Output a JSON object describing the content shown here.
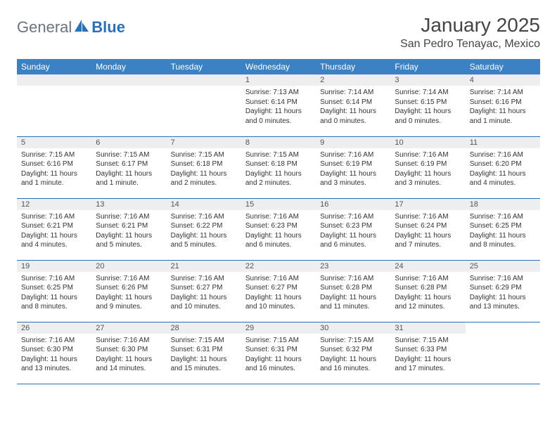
{
  "logo": {
    "text1": "General",
    "text2": "Blue"
  },
  "title": "January 2025",
  "location": "San Pedro Tenayac, Mexico",
  "colors": {
    "header_bg": "#3b82c4",
    "header_text": "#ffffff",
    "row_divider": "#2a71b8",
    "daynum_bg": "#eceef0",
    "logo_gray": "#6b7280",
    "logo_blue": "#2a71b8"
  },
  "weekdays": [
    "Sunday",
    "Monday",
    "Tuesday",
    "Wednesday",
    "Thursday",
    "Friday",
    "Saturday"
  ],
  "weeks": [
    [
      null,
      null,
      null,
      {
        "n": "1",
        "sr": "7:13 AM",
        "ss": "6:14 PM",
        "dl": "11 hours and 0 minutes."
      },
      {
        "n": "2",
        "sr": "7:14 AM",
        "ss": "6:14 PM",
        "dl": "11 hours and 0 minutes."
      },
      {
        "n": "3",
        "sr": "7:14 AM",
        "ss": "6:15 PM",
        "dl": "11 hours and 0 minutes."
      },
      {
        "n": "4",
        "sr": "7:14 AM",
        "ss": "6:16 PM",
        "dl": "11 hours and 1 minute."
      }
    ],
    [
      {
        "n": "5",
        "sr": "7:15 AM",
        "ss": "6:16 PM",
        "dl": "11 hours and 1 minute."
      },
      {
        "n": "6",
        "sr": "7:15 AM",
        "ss": "6:17 PM",
        "dl": "11 hours and 1 minute."
      },
      {
        "n": "7",
        "sr": "7:15 AM",
        "ss": "6:18 PM",
        "dl": "11 hours and 2 minutes."
      },
      {
        "n": "8",
        "sr": "7:15 AM",
        "ss": "6:18 PM",
        "dl": "11 hours and 2 minutes."
      },
      {
        "n": "9",
        "sr": "7:16 AM",
        "ss": "6:19 PM",
        "dl": "11 hours and 3 minutes."
      },
      {
        "n": "10",
        "sr": "7:16 AM",
        "ss": "6:19 PM",
        "dl": "11 hours and 3 minutes."
      },
      {
        "n": "11",
        "sr": "7:16 AM",
        "ss": "6:20 PM",
        "dl": "11 hours and 4 minutes."
      }
    ],
    [
      {
        "n": "12",
        "sr": "7:16 AM",
        "ss": "6:21 PM",
        "dl": "11 hours and 4 minutes."
      },
      {
        "n": "13",
        "sr": "7:16 AM",
        "ss": "6:21 PM",
        "dl": "11 hours and 5 minutes."
      },
      {
        "n": "14",
        "sr": "7:16 AM",
        "ss": "6:22 PM",
        "dl": "11 hours and 5 minutes."
      },
      {
        "n": "15",
        "sr": "7:16 AM",
        "ss": "6:23 PM",
        "dl": "11 hours and 6 minutes."
      },
      {
        "n": "16",
        "sr": "7:16 AM",
        "ss": "6:23 PM",
        "dl": "11 hours and 6 minutes."
      },
      {
        "n": "17",
        "sr": "7:16 AM",
        "ss": "6:24 PM",
        "dl": "11 hours and 7 minutes."
      },
      {
        "n": "18",
        "sr": "7:16 AM",
        "ss": "6:25 PM",
        "dl": "11 hours and 8 minutes."
      }
    ],
    [
      {
        "n": "19",
        "sr": "7:16 AM",
        "ss": "6:25 PM",
        "dl": "11 hours and 8 minutes."
      },
      {
        "n": "20",
        "sr": "7:16 AM",
        "ss": "6:26 PM",
        "dl": "11 hours and 9 minutes."
      },
      {
        "n": "21",
        "sr": "7:16 AM",
        "ss": "6:27 PM",
        "dl": "11 hours and 10 minutes."
      },
      {
        "n": "22",
        "sr": "7:16 AM",
        "ss": "6:27 PM",
        "dl": "11 hours and 10 minutes."
      },
      {
        "n": "23",
        "sr": "7:16 AM",
        "ss": "6:28 PM",
        "dl": "11 hours and 11 minutes."
      },
      {
        "n": "24",
        "sr": "7:16 AM",
        "ss": "6:28 PM",
        "dl": "11 hours and 12 minutes."
      },
      {
        "n": "25",
        "sr": "7:16 AM",
        "ss": "6:29 PM",
        "dl": "11 hours and 13 minutes."
      }
    ],
    [
      {
        "n": "26",
        "sr": "7:16 AM",
        "ss": "6:30 PM",
        "dl": "11 hours and 13 minutes."
      },
      {
        "n": "27",
        "sr": "7:16 AM",
        "ss": "6:30 PM",
        "dl": "11 hours and 14 minutes."
      },
      {
        "n": "28",
        "sr": "7:15 AM",
        "ss": "6:31 PM",
        "dl": "11 hours and 15 minutes."
      },
      {
        "n": "29",
        "sr": "7:15 AM",
        "ss": "6:31 PM",
        "dl": "11 hours and 16 minutes."
      },
      {
        "n": "30",
        "sr": "7:15 AM",
        "ss": "6:32 PM",
        "dl": "11 hours and 16 minutes."
      },
      {
        "n": "31",
        "sr": "7:15 AM",
        "ss": "6:33 PM",
        "dl": "11 hours and 17 minutes."
      },
      null
    ]
  ]
}
